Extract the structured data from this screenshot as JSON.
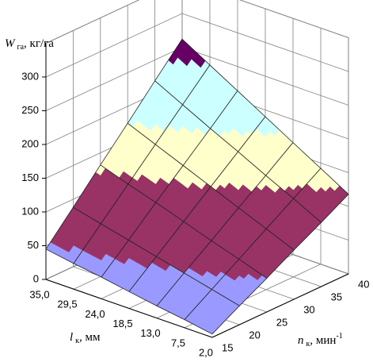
{
  "chart_data": {
    "type": "surface3d",
    "z_label": {
      "symbol": "W",
      "sub": "га",
      "unit": ", кг/га"
    },
    "x_label": {
      "symbol": "l",
      "sub": "к",
      "unit": ", мм"
    },
    "y_label": {
      "symbol": "n",
      "sub": "к",
      "unit": ", мин",
      "sup": "-1"
    },
    "x_categories": [
      "35,0",
      "29,5",
      "24,0",
      "18,5",
      "13,0",
      "7,5",
      "2,0"
    ],
    "yticks": [
      15,
      20,
      25,
      30,
      35,
      40
    ],
    "z": [
      [
        45,
        88,
        132,
        175,
        219,
        262
      ],
      [
        38,
        78,
        118,
        158,
        198,
        238
      ],
      [
        32,
        68,
        105,
        141,
        177,
        214
      ],
      [
        25,
        58,
        91,
        124,
        157,
        190
      ],
      [
        18,
        48,
        77,
        107,
        136,
        166
      ],
      [
        12,
        38,
        64,
        90,
        116,
        142
      ],
      [
        5,
        28,
        50,
        73,
        95,
        118
      ]
    ],
    "zlim": [
      0,
      350
    ],
    "zticks": [
      0,
      50,
      100,
      150,
      200,
      250,
      300
    ],
    "color_bands": [
      {
        "from": 0,
        "color": "#9999ff"
      },
      {
        "from": 50,
        "color": "#993366"
      },
      {
        "from": 125,
        "color": "#ffffcc"
      },
      {
        "from": 175,
        "color": "#ccffff"
      },
      {
        "from": 240,
        "color": "#660066"
      }
    ]
  }
}
